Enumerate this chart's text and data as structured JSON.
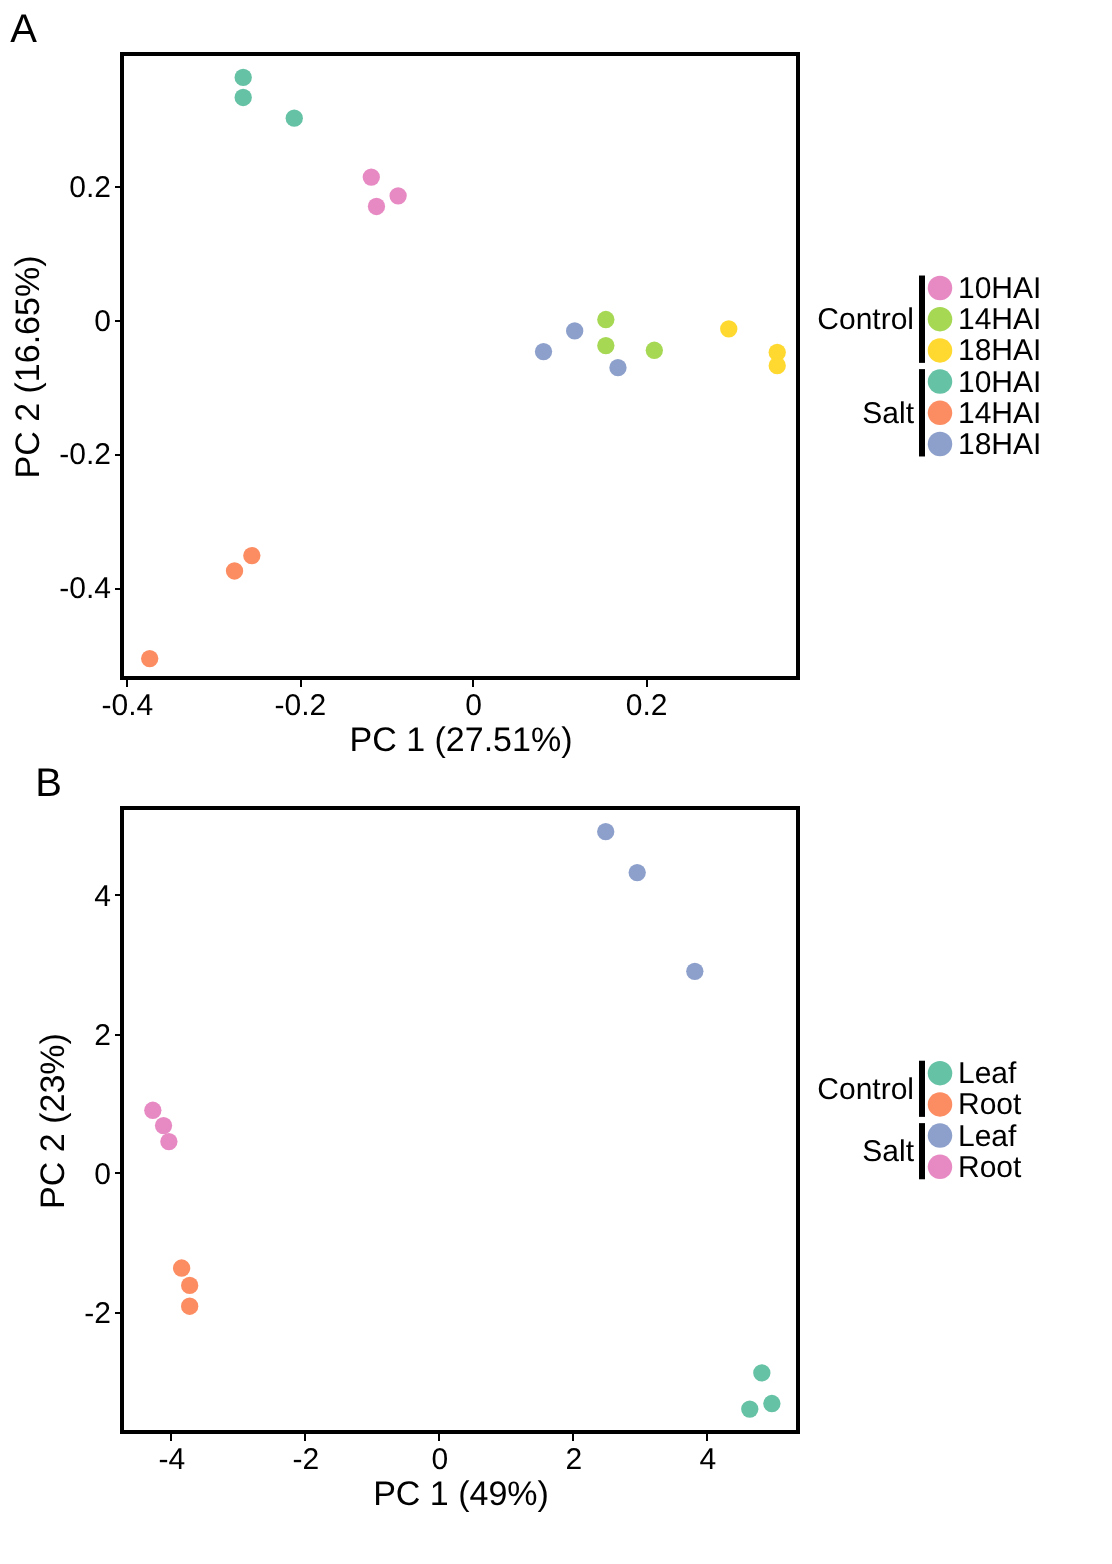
{
  "chart_data": [
    {
      "type": "scatter",
      "title": "A",
      "xlabel": "PC 1 (27.51%)",
      "ylabel": "PC 2 (16.65%)",
      "xlim": [
        -0.405,
        0.376
      ],
      "ylim": [
        -0.536,
        0.397
      ],
      "xticks": [
        -0.4,
        -0.2,
        0,
        0.2
      ],
      "yticks": [
        -0.4,
        -0.2,
        0,
        0.2
      ],
      "grid": false,
      "legend": "right",
      "marker": "circle",
      "annotations": [
        "Control",
        "Salt"
      ],
      "series": [
        {
          "name": "10HAI",
          "color": "#e78ac3",
          "x": [
            -0.117,
            -0.111,
            -0.086
          ],
          "values": [
            0.213,
            0.169,
            0.185
          ]
        },
        {
          "name": "14HAI",
          "color": "#a6d854",
          "x": [
            0.154,
            0.154,
            0.21
          ],
          "values": [
            0,
            -0.039,
            -0.046
          ]
        },
        {
          "name": "18HAI",
          "color": "#ffd92f",
          "x": [
            0.296,
            0.352,
            0.352
          ],
          "values": [
            -0.014,
            -0.049,
            -0.069
          ]
        },
        {
          "name": "10HAI",
          "color": "#66c2a5",
          "x": [
            -0.265,
            -0.265,
            -0.206
          ],
          "values": [
            0.362,
            0.332,
            0.301
          ]
        },
        {
          "name": "14HAI",
          "color": "#fc8d62",
          "x": [
            -0.275,
            -0.255,
            -0.373
          ],
          "values": [
            -0.376,
            -0.353,
            -0.507
          ]
        },
        {
          "name": "18HAI",
          "color": "#8da0cb",
          "x": [
            0.082,
            0.118,
            0.168
          ],
          "values": [
            -0.048,
            -0.017,
            -0.072
          ]
        }
      ]
    },
    {
      "type": "scatter",
      "title": "B",
      "xlabel": "PC 1 (49%)",
      "ylabel": "PC 2 (23%)",
      "xlim": [
        -4.73,
        5.36
      ],
      "ylim": [
        -3.73,
        5.25
      ],
      "xticks": [
        -4,
        -2,
        0,
        2,
        4
      ],
      "yticks": [
        -2,
        0,
        2,
        4
      ],
      "grid": false,
      "legend": "right",
      "marker": "circle",
      "annotations": [
        "Control",
        "Salt"
      ],
      "series": [
        {
          "name": "Leaf",
          "color": "#66c2a5",
          "x": [
            4.82,
            4.64,
            4.97
          ],
          "values": [
            -2.88,
            -3.4,
            -3.32
          ]
        },
        {
          "name": "Root",
          "color": "#fc8d62",
          "x": [
            -3.84,
            -3.72,
            -3.72
          ],
          "values": [
            -1.37,
            -1.62,
            -1.92
          ]
        },
        {
          "name": "Leaf",
          "color": "#8da0cb",
          "x": [
            2.49,
            2.96,
            3.82
          ],
          "values": [
            4.91,
            4.32,
            2.9
          ]
        },
        {
          "name": "Root",
          "color": "#e78ac3",
          "x": [
            -4.27,
            -4.11,
            -4.03
          ],
          "values": [
            0.9,
            0.68,
            0.45
          ]
        }
      ]
    }
  ]
}
